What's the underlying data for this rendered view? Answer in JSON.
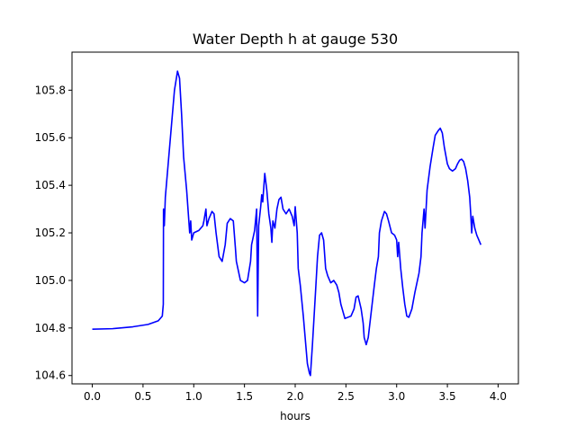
{
  "chart_data": {
    "type": "line",
    "title": "Water Depth h at gauge 530",
    "xlabel": "hours",
    "ylabel": "",
    "xlim": [
      -0.2,
      4.2
    ],
    "ylim": [
      104.565,
      105.96
    ],
    "x_ticks": [
      0.0,
      0.5,
      1.0,
      1.5,
      2.0,
      2.5,
      3.0,
      3.5,
      4.0
    ],
    "x_tick_labels": [
      "0.0",
      "0.5",
      "1.0",
      "1.5",
      "2.0",
      "2.5",
      "3.0",
      "3.5",
      "4.0"
    ],
    "y_ticks": [
      104.6,
      104.8,
      105.0,
      105.2,
      105.4,
      105.6,
      105.8
    ],
    "y_tick_labels": [
      "104.6",
      "104.8",
      "105.0",
      "105.2",
      "105.4",
      "105.6",
      "105.8"
    ],
    "grid": false,
    "line_color": "#0000ff",
    "series": [
      {
        "name": "",
        "points": [
          [
            0.0,
            104.795
          ],
          [
            0.2,
            104.797
          ],
          [
            0.4,
            104.805
          ],
          [
            0.55,
            104.815
          ],
          [
            0.65,
            104.83
          ],
          [
            0.69,
            104.85
          ],
          [
            0.7,
            104.9
          ],
          [
            0.702,
            105.3
          ],
          [
            0.71,
            105.23
          ],
          [
            0.72,
            105.35
          ],
          [
            0.75,
            105.5
          ],
          [
            0.78,
            105.65
          ],
          [
            0.81,
            105.8
          ],
          [
            0.84,
            105.88
          ],
          [
            0.86,
            105.85
          ],
          [
            0.88,
            105.7
          ],
          [
            0.9,
            105.52
          ],
          [
            0.93,
            105.38
          ],
          [
            0.96,
            105.2
          ],
          [
            0.97,
            105.25
          ],
          [
            0.98,
            105.17
          ],
          [
            1.0,
            105.2
          ],
          [
            1.05,
            105.21
          ],
          [
            1.09,
            105.23
          ],
          [
            1.1,
            105.25
          ],
          [
            1.12,
            105.3
          ],
          [
            1.13,
            105.23
          ],
          [
            1.15,
            105.26
          ],
          [
            1.18,
            105.29
          ],
          [
            1.2,
            105.28
          ],
          [
            1.22,
            105.2
          ],
          [
            1.25,
            105.1
          ],
          [
            1.28,
            105.08
          ],
          [
            1.31,
            105.15
          ],
          [
            1.33,
            105.24
          ],
          [
            1.36,
            105.26
          ],
          [
            1.39,
            105.25
          ],
          [
            1.41,
            105.14
          ],
          [
            1.42,
            105.08
          ],
          [
            1.44,
            105.04
          ],
          [
            1.45,
            105.02
          ],
          [
            1.46,
            105.0
          ],
          [
            1.5,
            104.99
          ],
          [
            1.53,
            105.0
          ],
          [
            1.56,
            105.08
          ],
          [
            1.57,
            105.15
          ],
          [
            1.6,
            105.21
          ],
          [
            1.62,
            105.3
          ],
          [
            1.63,
            104.85
          ],
          [
            1.64,
            105.23
          ],
          [
            1.66,
            105.31
          ],
          [
            1.67,
            105.36
          ],
          [
            1.68,
            105.33
          ],
          [
            1.7,
            105.45
          ],
          [
            1.72,
            105.38
          ],
          [
            1.74,
            105.28
          ],
          [
            1.76,
            105.22
          ],
          [
            1.77,
            105.16
          ],
          [
            1.78,
            105.25
          ],
          [
            1.8,
            105.22
          ],
          [
            1.82,
            105.3
          ],
          [
            1.84,
            105.34
          ],
          [
            1.86,
            105.35
          ],
          [
            1.88,
            105.3
          ],
          [
            1.91,
            105.28
          ],
          [
            1.94,
            105.3
          ],
          [
            1.97,
            105.27
          ],
          [
            1.99,
            105.23
          ],
          [
            2.0,
            105.31
          ],
          [
            2.02,
            105.2
          ],
          [
            2.03,
            105.05
          ],
          [
            2.05,
            104.98
          ],
          [
            2.08,
            104.85
          ],
          [
            2.1,
            104.75
          ],
          [
            2.12,
            104.65
          ],
          [
            2.14,
            104.61
          ],
          [
            2.15,
            104.6
          ],
          [
            2.17,
            104.73
          ],
          [
            2.2,
            104.95
          ],
          [
            2.22,
            105.1
          ],
          [
            2.24,
            105.19
          ],
          [
            2.26,
            105.2
          ],
          [
            2.28,
            105.17
          ],
          [
            2.3,
            105.05
          ],
          [
            2.32,
            105.02
          ],
          [
            2.35,
            104.99
          ],
          [
            2.38,
            105.0
          ],
          [
            2.41,
            104.98
          ],
          [
            2.43,
            104.95
          ],
          [
            2.45,
            104.9
          ],
          [
            2.47,
            104.87
          ],
          [
            2.49,
            104.84
          ],
          [
            2.52,
            104.845
          ],
          [
            2.55,
            104.85
          ],
          [
            2.58,
            104.88
          ],
          [
            2.6,
            104.93
          ],
          [
            2.62,
            104.935
          ],
          [
            2.65,
            104.88
          ],
          [
            2.67,
            104.82
          ],
          [
            2.68,
            104.76
          ],
          [
            2.7,
            104.73
          ],
          [
            2.72,
            104.76
          ],
          [
            2.75,
            104.87
          ],
          [
            2.78,
            104.98
          ],
          [
            2.8,
            105.05
          ],
          [
            2.82,
            105.1
          ],
          [
            2.83,
            105.2
          ],
          [
            2.85,
            105.25
          ],
          [
            2.88,
            105.29
          ],
          [
            2.9,
            105.28
          ],
          [
            2.92,
            105.25
          ],
          [
            2.95,
            105.2
          ],
          [
            2.98,
            105.19
          ],
          [
            3.0,
            105.17
          ],
          [
            3.01,
            105.1
          ],
          [
            3.02,
            105.16
          ],
          [
            3.04,
            105.05
          ],
          [
            3.06,
            104.97
          ],
          [
            3.08,
            104.9
          ],
          [
            3.1,
            104.85
          ],
          [
            3.12,
            104.845
          ],
          [
            3.15,
            104.88
          ],
          [
            3.18,
            104.95
          ],
          [
            3.22,
            105.03
          ],
          [
            3.24,
            105.1
          ],
          [
            3.25,
            105.2
          ],
          [
            3.26,
            105.25
          ],
          [
            3.27,
            105.3
          ],
          [
            3.28,
            105.22
          ],
          [
            3.3,
            105.38
          ],
          [
            3.33,
            105.48
          ],
          [
            3.36,
            105.56
          ],
          [
            3.38,
            105.61
          ],
          [
            3.41,
            105.63
          ],
          [
            3.43,
            105.64
          ],
          [
            3.45,
            105.62
          ],
          [
            3.47,
            105.56
          ],
          [
            3.5,
            105.49
          ],
          [
            3.52,
            105.47
          ],
          [
            3.55,
            105.46
          ],
          [
            3.58,
            105.47
          ],
          [
            3.6,
            105.49
          ],
          [
            3.62,
            105.505
          ],
          [
            3.64,
            105.51
          ],
          [
            3.66,
            105.5
          ],
          [
            3.68,
            105.47
          ],
          [
            3.7,
            105.42
          ],
          [
            3.72,
            105.35
          ],
          [
            3.73,
            105.28
          ],
          [
            3.74,
            105.2
          ],
          [
            3.75,
            105.27
          ],
          [
            3.77,
            105.22
          ],
          [
            3.79,
            105.19
          ],
          [
            3.81,
            105.17
          ],
          [
            3.83,
            105.15
          ]
        ]
      }
    ]
  }
}
